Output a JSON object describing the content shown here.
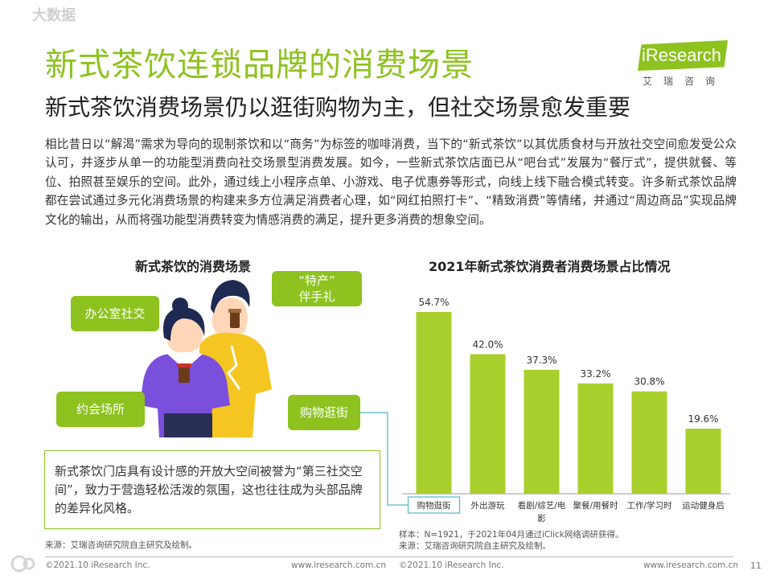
{
  "header": {
    "title": "新式茶饮连锁品牌的消费场景",
    "subtitle": "新式茶饮消费场景仍以逛街购物为主，但社交场景愈发重要",
    "logo_text": "iResearch",
    "logo_sub": "艾瑞咨询"
  },
  "intro": "相比昔日以“解渴”需求为导向的现制茶饮和以“商务”为标签的咖啡消费，当下的“新式茶饮”以其优质食材与开放社交空间愈发受公众认可，并逐步从单一的功能型消费向社交场景型消费发展。如今，一些新式茶饮店面已从“吧台式”发展为“餐厅式”，提供就餐、等位、拍照甚至娱乐的空间。此外，通过线上小程序点单、小游戏、电子优惠券等形式，向线上线下融合模式转变。许多新式茶饮品牌都在尝试通过多元化消费场景的构建来多方位满足消费者心理，如“网红拍照打卡”、“精致消费”等情绪，并通过“周边商品”实现品牌文化的输出，从而将强功能型消费转变为情感消费的满足，提升更多消费的想象空间。",
  "left_panel": {
    "title": "新式茶饮的消费场景",
    "bubbles": {
      "office": "办公室社交",
      "special_line1": "“特产”",
      "special_line2": "伴手礼",
      "date": "约会场所",
      "shopping": "购物逛街"
    },
    "note": "新式茶饮门店具有设计感的开放大空间被誉为“第三社交空间”，致力于营造轻松活泼的氛围，这也往往成为头部品牌的差异化风格。",
    "source": "来源：艾瑞咨询研究院自主研究及绘制。"
  },
  "chart_data": {
    "type": "bar",
    "title": "2021年新式茶饮消费者消费场景占比情况",
    "categories": [
      "购物逛街",
      "外出游玩",
      "看剧/综艺/电影",
      "聚餐/用餐时",
      "工作/学习时",
      "运动健身后"
    ],
    "category_lines": [
      [
        "购物逛街"
      ],
      [
        "外出游玩"
      ],
      [
        "看剧/综艺/电",
        "影"
      ],
      [
        "聚餐/用餐时"
      ],
      [
        "工作/学习时"
      ],
      [
        "运动健身后"
      ]
    ],
    "values": [
      54.7,
      42.0,
      37.3,
      33.2,
      30.8,
      19.6
    ],
    "value_labels": [
      "54.7%",
      "42.0%",
      "37.3%",
      "33.2%",
      "30.8%",
      "19.6%"
    ],
    "ylim": [
      0,
      60
    ],
    "bar_color": "#a8cf2c",
    "highlight_color": "#4fb8c9",
    "grid": false
  },
  "chart_notes": {
    "sample": "样本：N=1921，于2021年04月通过iClick网络调研获得。",
    "source": "来源：艾瑞咨询研究院自主研究及绘制。"
  },
  "footer": {
    "copyright_left": "©2021.10 iResearch Inc.",
    "url_left": "www.iresearch.com.cn",
    "copyright_right": "©2021.10 iResearch Inc.",
    "url_right": "www.iresearch.com.cn",
    "page": "11"
  },
  "watermark": "大数据",
  "colors": {
    "accent": "#8dc21f",
    "bar": "#a8cf2c",
    "connector": "#4fb8c9"
  }
}
